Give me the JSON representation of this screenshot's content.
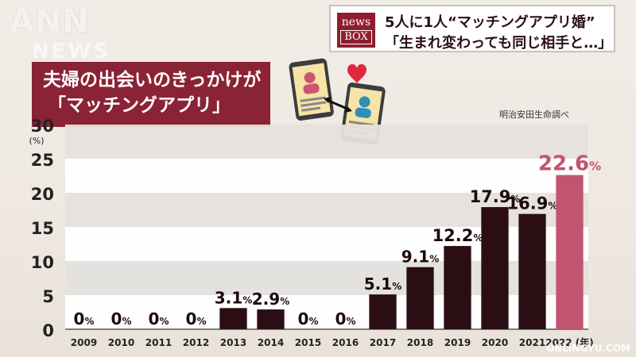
{
  "watermark": {
    "brand": "ANN",
    "sub": "NEWS"
  },
  "headline": {
    "logo_top": "news",
    "logo_box": "BOX",
    "line1": "5人に1人“マッチングアプリ婚”",
    "line2": "「生まれ変わっても同じ相手と…」"
  },
  "title": {
    "line1": "夫婦の出会いのきっかけが",
    "line2": "「マッチングアプリ」"
  },
  "source": "明治安田生命調べ",
  "colors": {
    "bar": "#2b0e14",
    "highlight": "#c25470",
    "title_bg": "#8a2335"
  },
  "chart_data": {
    "type": "bar",
    "categories": [
      "2009",
      "2010",
      "2011",
      "2012",
      "2013",
      "2014",
      "2015",
      "2016",
      "2017",
      "2018",
      "2019",
      "2020",
      "2021",
      "2022 (年)"
    ],
    "values": [
      0,
      0,
      0,
      0,
      3.1,
      2.9,
      0,
      0,
      5.1,
      9.1,
      12.2,
      17.9,
      16.9,
      22.6
    ],
    "labels": [
      "0",
      "0",
      "0",
      "0",
      "3.1",
      "2.9",
      "0",
      "0",
      "5.1",
      "9.1",
      "12.2",
      "17.9",
      "16.9",
      "22.6"
    ],
    "unit": "%",
    "ylabel": "(%)",
    "yticks": [
      0,
      5,
      10,
      15,
      20,
      25,
      30
    ],
    "ylim": [
      0,
      30
    ],
    "highlight_index": 13,
    "grid": true
  },
  "footer_watermark": "ONLINGYU.COM"
}
